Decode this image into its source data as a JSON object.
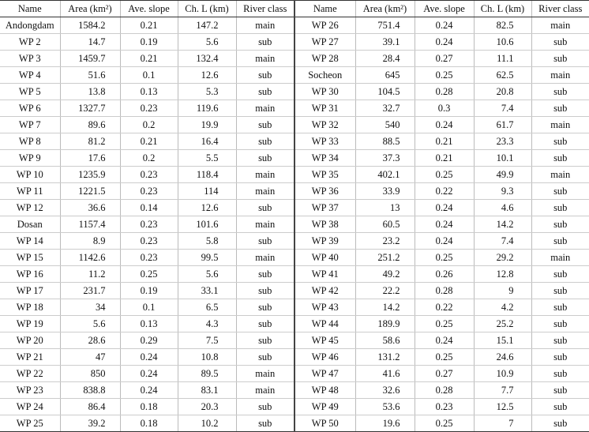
{
  "table": {
    "header": [
      "Name",
      "Area (km²)",
      "Ave. slope",
      "Ch. L (km)",
      "River class"
    ],
    "left_rows": [
      [
        "Andongdam",
        1584.2,
        0.21,
        147.2,
        "main"
      ],
      [
        "WP 2",
        14.7,
        0.19,
        5.6,
        "sub"
      ],
      [
        "WP 3",
        1459.7,
        0.21,
        132.4,
        "main"
      ],
      [
        "WP 4",
        51.6,
        0.1,
        12.6,
        "sub"
      ],
      [
        "WP 5",
        13.8,
        0.13,
        5.3,
        "sub"
      ],
      [
        "WP 6",
        1327.7,
        0.23,
        119.6,
        "main"
      ],
      [
        "WP 7",
        89.6,
        0.2,
        19.9,
        "sub"
      ],
      [
        "WP 8",
        81.2,
        0.21,
        16.4,
        "sub"
      ],
      [
        "WP 9",
        17.6,
        0.2,
        5.5,
        "sub"
      ],
      [
        "WP 10",
        1235.9,
        0.23,
        118.4,
        "main"
      ],
      [
        "WP 11",
        1221.5,
        0.23,
        114,
        "main"
      ],
      [
        "WP 12",
        36.6,
        0.14,
        12.6,
        "sub"
      ],
      [
        "Dosan",
        1157.4,
        0.23,
        101.6,
        "main"
      ],
      [
        "WP 14",
        8.9,
        0.23,
        5.8,
        "sub"
      ],
      [
        "WP 15",
        1142.6,
        0.23,
        99.5,
        "main"
      ],
      [
        "WP 16",
        11.2,
        0.25,
        5.6,
        "sub"
      ],
      [
        "WP 17",
        231.7,
        0.19,
        33.1,
        "sub"
      ],
      [
        "WP 18",
        34,
        0.1,
        6.5,
        "sub"
      ],
      [
        "WP 19",
        5.6,
        0.13,
        4.3,
        "sub"
      ],
      [
        "WP 20",
        28.6,
        0.29,
        7.5,
        "sub"
      ],
      [
        "WP 21",
        47,
        0.24,
        10.8,
        "sub"
      ],
      [
        "WP 22",
        850,
        0.24,
        89.5,
        "main"
      ],
      [
        "WP 23",
        838.8,
        0.24,
        83.1,
        "main"
      ],
      [
        "WP 24",
        86.4,
        0.18,
        20.3,
        "sub"
      ],
      [
        "WP 25",
        39.2,
        0.18,
        10.2,
        "sub"
      ]
    ],
    "right_rows": [
      [
        "WP 26",
        751.4,
        0.24,
        82.5,
        "main"
      ],
      [
        "WP 27",
        39.1,
        0.24,
        10.6,
        "sub"
      ],
      [
        "WP 28",
        28.4,
        0.27,
        11.1,
        "sub"
      ],
      [
        "Socheon",
        645,
        0.25,
        62.5,
        "main"
      ],
      [
        "WP 30",
        104.5,
        0.28,
        20.8,
        "sub"
      ],
      [
        "WP 31",
        32.7,
        0.3,
        7.4,
        "sub"
      ],
      [
        "WP 32",
        540,
        0.24,
        61.7,
        "main"
      ],
      [
        "WP 33",
        88.5,
        0.21,
        23.3,
        "sub"
      ],
      [
        "WP 34",
        37.3,
        0.21,
        10.1,
        "sub"
      ],
      [
        "WP 35",
        402.1,
        0.25,
        49.9,
        "main"
      ],
      [
        "WP 36",
        33.9,
        0.22,
        9.3,
        "sub"
      ],
      [
        "WP 37",
        13,
        0.24,
        4.6,
        "sub"
      ],
      [
        "WP 38",
        60.5,
        0.24,
        14.2,
        "sub"
      ],
      [
        "WP 39",
        23.2,
        0.24,
        7.4,
        "sub"
      ],
      [
        "WP 40",
        251.2,
        0.25,
        29.2,
        "main"
      ],
      [
        "WP 41",
        49.2,
        0.26,
        12.8,
        "sub"
      ],
      [
        "WP 42",
        22.2,
        0.28,
        9,
        "sub"
      ],
      [
        "WP 43",
        14.2,
        0.22,
        4.2,
        "sub"
      ],
      [
        "WP 44",
        189.9,
        0.25,
        25.2,
        "sub"
      ],
      [
        "WP 45",
        58.6,
        0.24,
        15.1,
        "sub"
      ],
      [
        "WP 46",
        131.2,
        0.25,
        24.6,
        "sub"
      ],
      [
        "WP 47",
        41.6,
        0.27,
        10.9,
        "sub"
      ],
      [
        "WP 48",
        32.6,
        0.28,
        7.7,
        "sub"
      ],
      [
        "WP 49",
        53.6,
        0.23,
        12.5,
        "sub"
      ],
      [
        "WP 50",
        19.6,
        0.25,
        7,
        "sub"
      ]
    ]
  }
}
